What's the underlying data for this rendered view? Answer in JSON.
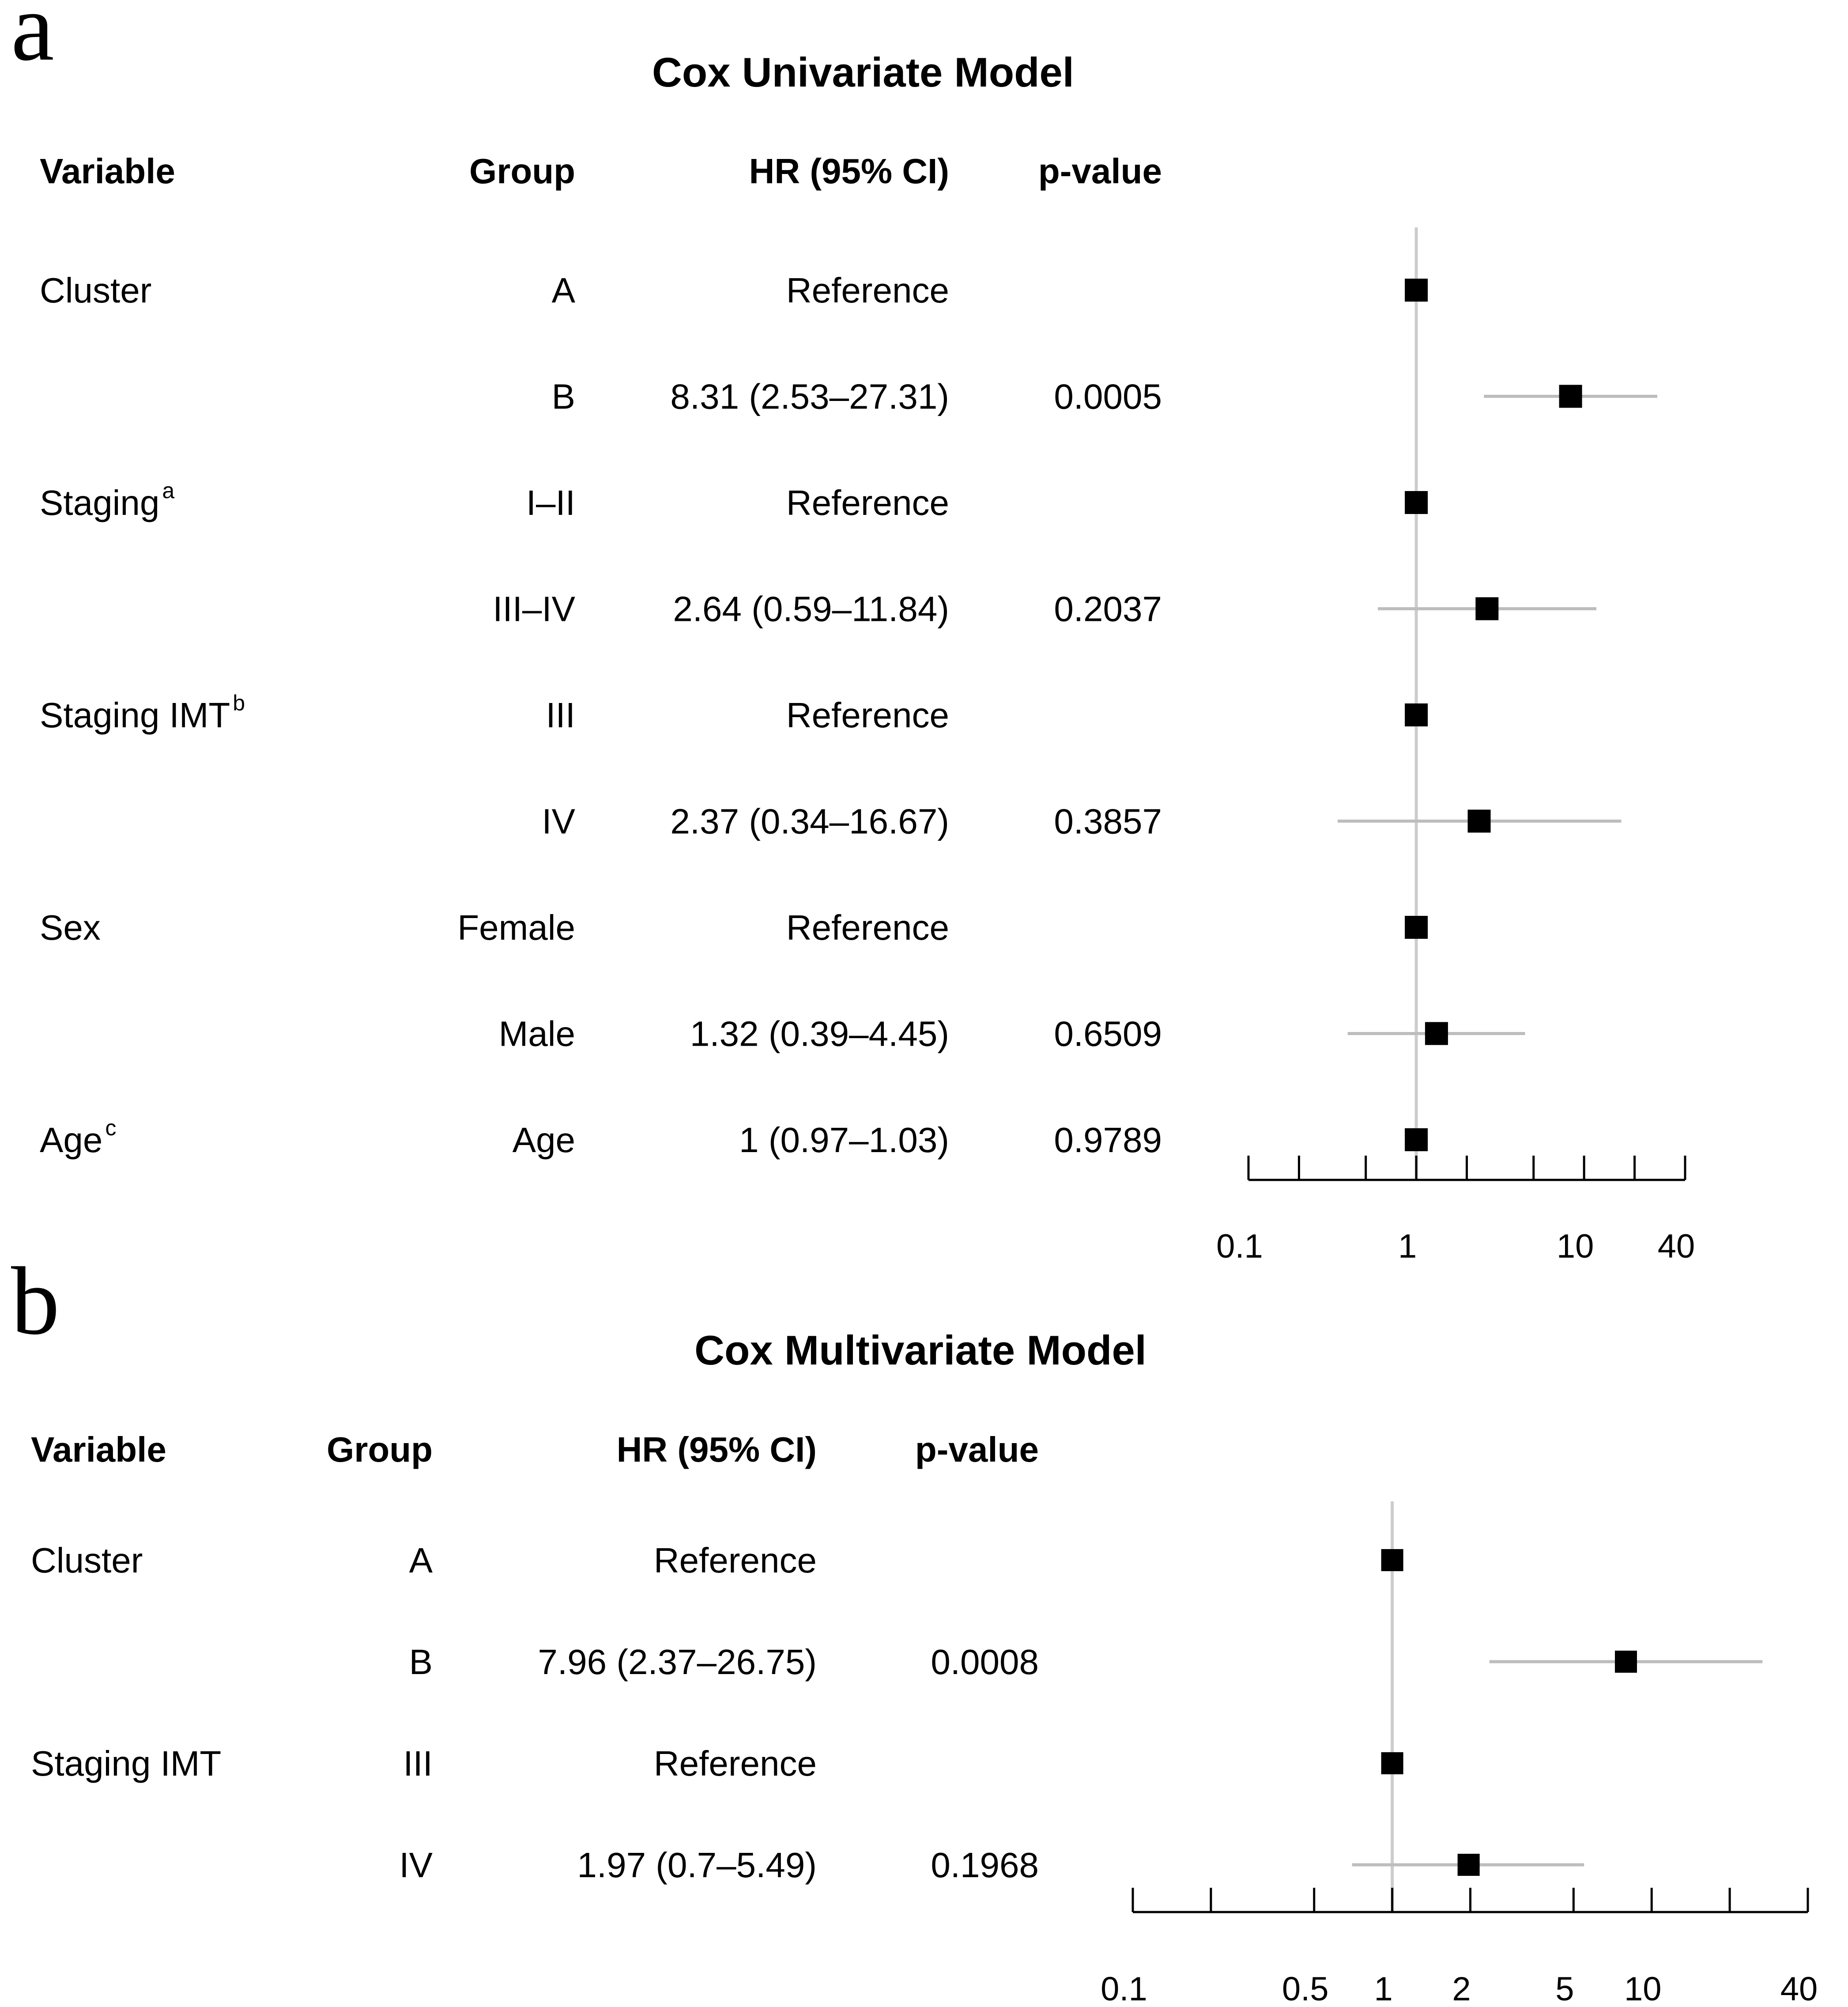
{
  "chart_data": [
    {
      "panel": "a",
      "type": "forest",
      "title": "Cox Univariate Model",
      "headers": {
        "variable": "Variable",
        "group": "Group",
        "hr": "HR (95% CI)",
        "p": "p-value"
      },
      "scale": "log",
      "xlim": [
        0.1,
        40
      ],
      "ticks": [
        0.1,
        0.2,
        0.5,
        1,
        2,
        5,
        10,
        20,
        40
      ],
      "tick_labels": [
        {
          "value": 0.1,
          "label": "0.1"
        },
        {
          "value": 1,
          "label": "1"
        },
        {
          "value": 10,
          "label": "10"
        },
        {
          "value": 40,
          "label": "40"
        }
      ],
      "reference": 1,
      "rows": [
        {
          "variable": "Cluster",
          "sup": "",
          "group": "A",
          "hr_text": "Reference",
          "p": "",
          "hr": 1,
          "lo": null,
          "hi": null
        },
        {
          "variable": "",
          "sup": "",
          "group": "B",
          "hr_text": "8.31 (2.53–27.31)",
          "p": "0.0005",
          "hr": 8.31,
          "lo": 2.53,
          "hi": 27.31
        },
        {
          "variable": "Staging",
          "sup": "a",
          "group": "I–II",
          "hr_text": "Reference",
          "p": "",
          "hr": 1,
          "lo": null,
          "hi": null
        },
        {
          "variable": "",
          "sup": "",
          "group": "III–IV",
          "hr_text": "2.64 (0.59–11.84)",
          "p": "0.2037",
          "hr": 2.64,
          "lo": 0.59,
          "hi": 11.84
        },
        {
          "variable": "Staging IMT",
          "sup": "b",
          "group": "III",
          "hr_text": "Reference",
          "p": "",
          "hr": 1,
          "lo": null,
          "hi": null
        },
        {
          "variable": "",
          "sup": "",
          "group": "IV",
          "hr_text": "2.37 (0.34–16.67)",
          "p": "0.3857",
          "hr": 2.37,
          "lo": 0.34,
          "hi": 16.67
        },
        {
          "variable": "Sex",
          "sup": "",
          "group": "Female",
          "hr_text": "Reference",
          "p": "",
          "hr": 1,
          "lo": null,
          "hi": null
        },
        {
          "variable": "",
          "sup": "",
          "group": "Male",
          "hr_text": "1.32 (0.39–4.45)",
          "p": "0.6509",
          "hr": 1.32,
          "lo": 0.39,
          "hi": 4.45
        },
        {
          "variable": "Age",
          "sup": "c",
          "group": "Age",
          "hr_text": "1 (0.97–1.03)",
          "p": "0.9789",
          "hr": 1,
          "lo": 0.97,
          "hi": 1.03
        }
      ]
    },
    {
      "panel": "b",
      "type": "forest",
      "title": "Cox Multivariate Model",
      "headers": {
        "variable": "Variable",
        "group": "Group",
        "hr": "HR (95% CI)",
        "p": "p-value"
      },
      "scale": "log",
      "xlim": [
        0.1,
        40
      ],
      "ticks": [
        0.1,
        0.2,
        0.5,
        1,
        2,
        5,
        10,
        20,
        40
      ],
      "tick_labels": [
        {
          "value": 0.1,
          "label": "0.1"
        },
        {
          "value": 0.5,
          "label": "0.5"
        },
        {
          "value": 1,
          "label": "1"
        },
        {
          "value": 2,
          "label": "2"
        },
        {
          "value": 5,
          "label": "5"
        },
        {
          "value": 10,
          "label": "10"
        },
        {
          "value": 40,
          "label": "40"
        }
      ],
      "reference": 1,
      "rows": [
        {
          "variable": "Cluster",
          "sup": "",
          "group": "A",
          "hr_text": "Reference",
          "p": "",
          "hr": 1,
          "lo": null,
          "hi": null
        },
        {
          "variable": "",
          "sup": "",
          "group": "B",
          "hr_text": "7.96 (2.37–26.75)",
          "p": "0.0008",
          "hr": 7.96,
          "lo": 2.37,
          "hi": 26.75
        },
        {
          "variable": "Staging IMT",
          "sup": "",
          "group": "III",
          "hr_text": "Reference",
          "p": "",
          "hr": 1,
          "lo": null,
          "hi": null
        },
        {
          "variable": "",
          "sup": "",
          "group": "IV",
          "hr_text": "1.97 (0.7–5.49)",
          "p": "0.1968",
          "hr": 1.97,
          "lo": 0.7,
          "hi": 5.49
        }
      ]
    }
  ]
}
